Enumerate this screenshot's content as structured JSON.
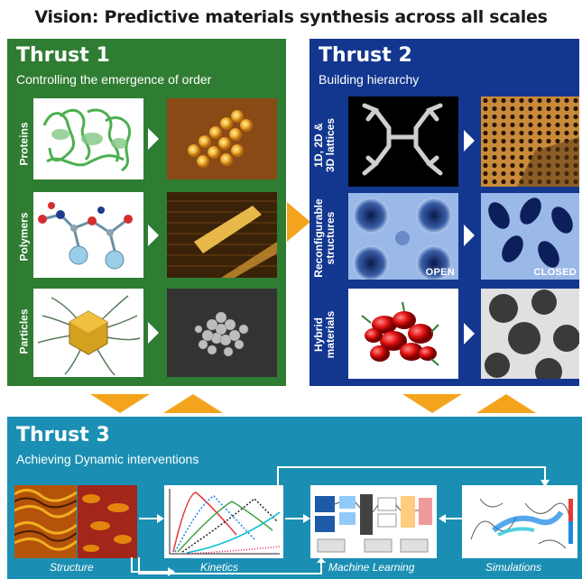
{
  "header": {
    "title": "Vision: Predictive materials synthesis across all scales"
  },
  "thrust1": {
    "title": "Thrust 1",
    "subtitle": "Controlling the emergence of order",
    "rows": [
      {
        "label": "Proteins"
      },
      {
        "label": "Polymers"
      },
      {
        "label": "Particles"
      }
    ]
  },
  "thrust2": {
    "title": "Thrust 2",
    "subtitle": "Building hierarchy",
    "rows": [
      {
        "label_line1": "1D, 2D &",
        "label_line2": "3D lattices"
      },
      {
        "label_line1": "Reconfigurable",
        "label_line2": "structures",
        "left_tag": "OPEN",
        "right_tag": "CLOSED"
      },
      {
        "label_line1": "Hybrid",
        "label_line2": "materials"
      }
    ]
  },
  "thrust3": {
    "title": "Thrust 3",
    "subtitle": "Achieving Dynamic interventions",
    "stages": [
      "Structure",
      "Kinetics",
      "Machine Learning",
      "Simulations"
    ]
  },
  "colors": {
    "thrust1_bg": "#2f7d32",
    "thrust2_bg": "#13378f",
    "thrust3_bg": "#1b8fb3",
    "connector_arrows": "#f4a41c"
  }
}
